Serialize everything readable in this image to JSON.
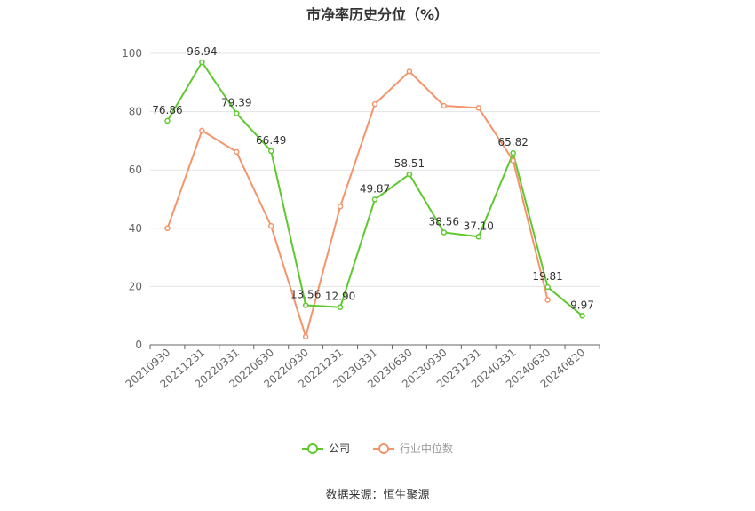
{
  "chart_data": {
    "type": "line",
    "title": "市净率历史分位（%）",
    "categories": [
      "20210930",
      "20211231",
      "20220331",
      "20220630",
      "20220930",
      "20221231",
      "20230331",
      "20230630",
      "20230930",
      "20231231",
      "20240331",
      "20240630",
      "20240820"
    ],
    "ylim": [
      0,
      100
    ],
    "yticks": [
      0,
      20,
      40,
      60,
      80,
      100
    ],
    "grid": true,
    "legend_position": "bottom",
    "series": [
      {
        "name": "公司",
        "color": "#5ec92e",
        "values": [
          76.86,
          96.94,
          79.39,
          66.49,
          13.56,
          12.9,
          49.87,
          58.51,
          38.56,
          37.1,
          65.82,
          19.81,
          9.97
        ],
        "labels": [
          "76.86",
          "96.94",
          "79.39",
          "66.49",
          "13.56",
          "12.90",
          "49.87",
          "58.51",
          "38.56",
          "37.10",
          "65.82",
          "19.81",
          "9.97"
        ]
      },
      {
        "name": "行业中位数",
        "color": "#f4946b",
        "values": [
          40.0,
          73.5,
          66.2,
          40.8,
          2.8,
          47.5,
          82.6,
          93.8,
          82.0,
          81.3,
          63.2,
          15.4,
          null
        ]
      }
    ]
  },
  "source": "数据来源：恒生聚源"
}
